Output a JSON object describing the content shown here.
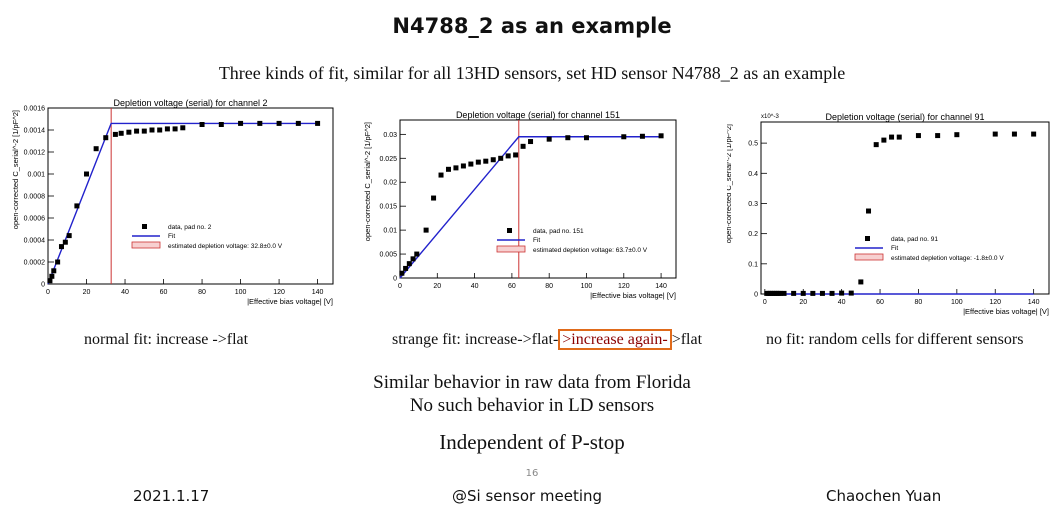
{
  "title": "N4788_2 as an example",
  "subtitle": "Three kinds of fit, similar for all 13HD sensors, set HD sensor N4788_2 as an example",
  "captions": {
    "normal": "normal fit: increase ->flat",
    "strange_prefix": "strange fit: increase->flat-",
    "strange_highlight": ">increase again-",
    "strange_suffix": ">flat",
    "nofit": "no fit: random cells for different sensors"
  },
  "notes": {
    "line1": "Similar behavior in raw data from Florida",
    "line2": "No such behavior in LD sensors",
    "line3": "Independent of P-stop"
  },
  "footer": {
    "date": "2021.1.17",
    "meeting": "@Si sensor meeting",
    "author": "Chaochen Yuan",
    "page": "16"
  },
  "colors": {
    "fit": "#2222cc",
    "depletion_line": "#cc3333",
    "marker": "#000000",
    "highlight_box": "#e06a1a",
    "highlight_text": "#8b0000"
  },
  "chart_data": [
    {
      "type": "scatter",
      "title": "Depletion voltage (serial) for channel 2",
      "xlabel": "|Effective bias voltage| [V]",
      "ylabel": "open-corrected C_serial^-2 [1/pF^2]",
      "xlim": [
        0,
        148
      ],
      "ylim": [
        0,
        0.0016
      ],
      "xticks": [
        "0",
        "20",
        "40",
        "60",
        "80",
        "100",
        "120",
        "140"
      ],
      "yticks": [
        "0",
        "0.0002",
        "0.0004",
        "0.0006",
        "0.0008",
        "0.001",
        "0.0012",
        "0.0014",
        "0.0016"
      ],
      "x": [
        1,
        2,
        3,
        5,
        7,
        9,
        11,
        15,
        20,
        25,
        30,
        35,
        38,
        42,
        46,
        50,
        54,
        58,
        62,
        66,
        70,
        80,
        90,
        100,
        110,
        120,
        130,
        140
      ],
      "y": [
        3e-05,
        7e-05,
        0.00012,
        0.0002,
        0.00034,
        0.00038,
        0.00044,
        0.00071,
        0.001,
        0.00123,
        0.00133,
        0.00136,
        0.00137,
        0.00138,
        0.00139,
        0.00139,
        0.0014,
        0.0014,
        0.00141,
        0.00141,
        0.00142,
        0.00145,
        0.00145,
        0.00146,
        0.00146,
        0.00146,
        0.00146,
        0.00146
      ],
      "fit": [
        [
          0,
          0
        ],
        [
          32.8,
          0.00146
        ],
        [
          140,
          0.00146
        ]
      ],
      "depletion_voltage": 32.8,
      "legend": [
        "data, pad no. 2",
        "Fit",
        "estimated depletion voltage: 32.8±0.0 V"
      ]
    },
    {
      "type": "scatter",
      "title": "Depletion voltage (serial) for channel 151",
      "xlabel": "|Effective bias voltage| [V]",
      "ylabel": "open-corrected C_serial^-2 [1/pF^2]",
      "xlim": [
        0,
        148
      ],
      "ylim": [
        0,
        0.033
      ],
      "xticks": [
        "0",
        "20",
        "40",
        "60",
        "80",
        "100",
        "120",
        "140"
      ],
      "yticks": [
        "0",
        "0.005",
        "0.01",
        "0.015",
        "0.02",
        "0.025",
        "0.03"
      ],
      "x": [
        1,
        3,
        5,
        7,
        9,
        14,
        18,
        22,
        26,
        30,
        34,
        38,
        42,
        46,
        50,
        54,
        58,
        62,
        66,
        70,
        80,
        90,
        100,
        120,
        130,
        140
      ],
      "y": [
        0.001,
        0.002,
        0.003,
        0.004,
        0.005,
        0.01,
        0.0167,
        0.0215,
        0.0227,
        0.023,
        0.0234,
        0.0238,
        0.0242,
        0.0244,
        0.0247,
        0.025,
        0.0255,
        0.0257,
        0.0275,
        0.0285,
        0.029,
        0.0293,
        0.0293,
        0.0295,
        0.0296,
        0.0297
      ],
      "fit": [
        [
          0,
          0
        ],
        [
          63.7,
          0.0295
        ],
        [
          140,
          0.0295
        ]
      ],
      "depletion_voltage": 63.7,
      "legend": [
        "data, pad no. 151",
        "Fit",
        "estimated depletion voltage: 63.7±0.0 V"
      ]
    },
    {
      "type": "scatter",
      "title": "Depletion voltage (serial) for channel 91",
      "xlabel": "|Effective bias voltage| [V]",
      "ylabel": "open-corrected C_serial^-2 [1/pF^2]",
      "yscale_label": "x10^-3",
      "xlim": [
        -2,
        148
      ],
      "ylim": [
        0,
        0.57
      ],
      "xticks": [
        "0",
        "20",
        "40",
        "60",
        "80",
        "100",
        "120",
        "140"
      ],
      "yticks": [
        "0",
        "0.1",
        "0.2",
        "0.3",
        "0.4",
        "0.5"
      ],
      "x": [
        1,
        2,
        3,
        4,
        5,
        6,
        7,
        8,
        10,
        15,
        20,
        25,
        30,
        35,
        40,
        45,
        50,
        54,
        58,
        62,
        66,
        70,
        80,
        90,
        100,
        120,
        130,
        140
      ],
      "y": [
        0.002,
        0.002,
        0.002,
        0.002,
        0.002,
        0.002,
        0.002,
        0.002,
        0.002,
        0.002,
        0.002,
        0.002,
        0.002,
        0.002,
        0.003,
        0.003,
        0.04,
        0.275,
        0.495,
        0.51,
        0.52,
        0.52,
        0.525,
        0.525,
        0.528,
        0.53,
        0.53,
        0.53
      ],
      "fit": [
        [
          0,
          0
        ],
        [
          140,
          0
        ]
      ],
      "legend": [
        "data, pad no. 91",
        "Fit",
        "estimated depletion voltage: -1.8±0.0 V"
      ]
    }
  ]
}
